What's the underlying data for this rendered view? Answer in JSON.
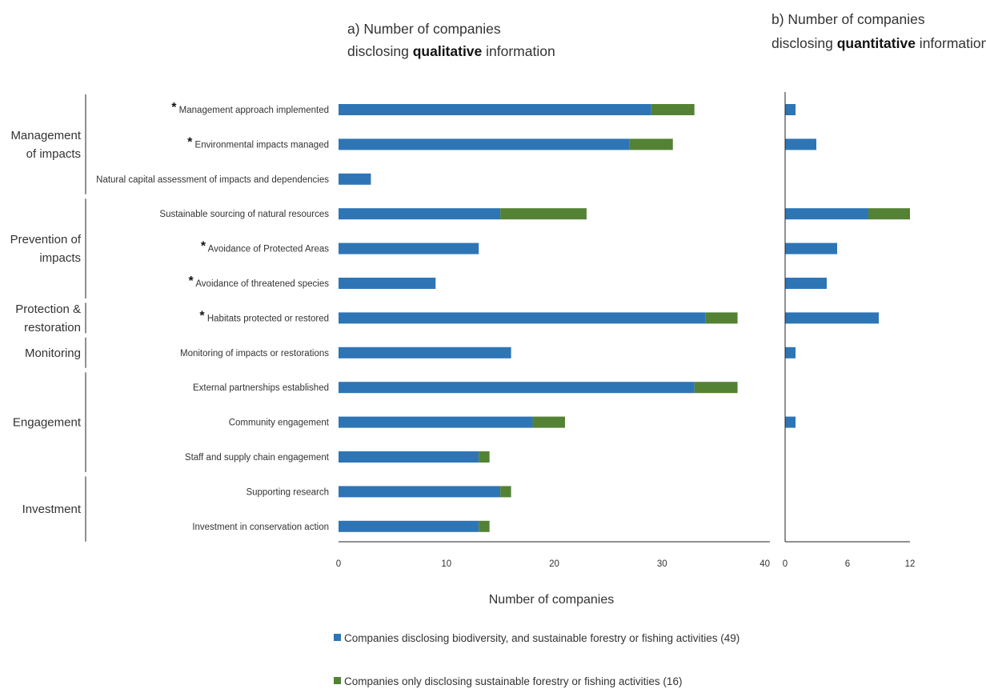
{
  "colors": {
    "series1": "#2e75b6",
    "series2": "#548235",
    "axis": "#222222"
  },
  "panel_a_title": {
    "prefix": "a) Number of companies",
    "line2_pre": "disclosing ",
    "line2_bold": "qualitative",
    "line2_post": " information"
  },
  "panel_b_title": {
    "prefix": "b) Number of companies",
    "line2_pre": "disclosing ",
    "line2_bold": "quantitative",
    "line2_post": " information"
  },
  "xlabel": "Number of companies",
  "legend": [
    "Companies disclosing biodiversity, and sustainable forestry or fishing activities (49)",
    "Companies only disclosing sustainable forestry or fishing activities (16)"
  ],
  "groups": [
    {
      "lines": [
        "Management",
        "of impacts"
      ],
      "from": 0,
      "to": 2
    },
    {
      "lines": [
        "Prevention of",
        "impacts"
      ],
      "from": 3,
      "to": 5
    },
    {
      "lines": [
        "Protection &",
        "restoration"
      ],
      "from": 6,
      "to": 6
    },
    {
      "lines": [
        "Monitoring"
      ],
      "from": 7,
      "to": 7
    },
    {
      "lines": [
        "Engagement"
      ],
      "from": 8,
      "to": 10
    },
    {
      "lines": [
        "Investment"
      ],
      "from": 11,
      "to": 12
    }
  ],
  "chart_data": [
    {
      "type": "bar",
      "orientation": "horizontal",
      "stacked": true,
      "title": "a) Number of companies disclosing qualitative information",
      "xlabel": "Number of companies",
      "xlim": [
        0,
        40
      ],
      "xticks": [
        "0",
        "10",
        "20",
        "30",
        "40"
      ],
      "categories": [
        "Management approach implemented",
        "Environmental impacts managed",
        "Natural capital assessment of impacts and dependencies",
        "Sustainable sourcing of natural resources",
        "Avoidance of Protected Areas",
        "Avoidance of threatened species",
        "Habitats protected or restored",
        "Monitoring of impacts or restorations",
        "External partnerships established",
        "Community engagement",
        "Staff and supply chain engagement",
        "Supporting research",
        "Investment in conservation action"
      ],
      "starred": [
        true,
        true,
        false,
        false,
        true,
        true,
        true,
        false,
        false,
        false,
        false,
        false,
        false
      ],
      "series": [
        {
          "name": "Companies disclosing biodiversity, and sustainable forestry or fishing activities (49)",
          "values": [
            29,
            27,
            3,
            15,
            13,
            9,
            34,
            16,
            33,
            18,
            13,
            15,
            13
          ]
        },
        {
          "name": "Companies only disclosing sustainable forestry or fishing activities (16)",
          "values": [
            4,
            4,
            0,
            8,
            0,
            0,
            3,
            0,
            4,
            3,
            1,
            1,
            1
          ]
        }
      ]
    },
    {
      "type": "bar",
      "orientation": "horizontal",
      "stacked": true,
      "title": "b) Number of companies disclosing quantitative information",
      "xlim": [
        0,
        12
      ],
      "xticks": [
        "0",
        "6",
        "12"
      ],
      "series": [
        {
          "name": "Companies disclosing biodiversity, and sustainable forestry or fishing activities (49)",
          "values": [
            1,
            3,
            0,
            8,
            5,
            4,
            9,
            1,
            0,
            1,
            0,
            0,
            0
          ]
        },
        {
          "name": "Companies only disclosing sustainable forestry or fishing activities (16)",
          "values": [
            0,
            0,
            0,
            4,
            0,
            0,
            0,
            0,
            0,
            0,
            0,
            0,
            0
          ]
        }
      ]
    }
  ]
}
